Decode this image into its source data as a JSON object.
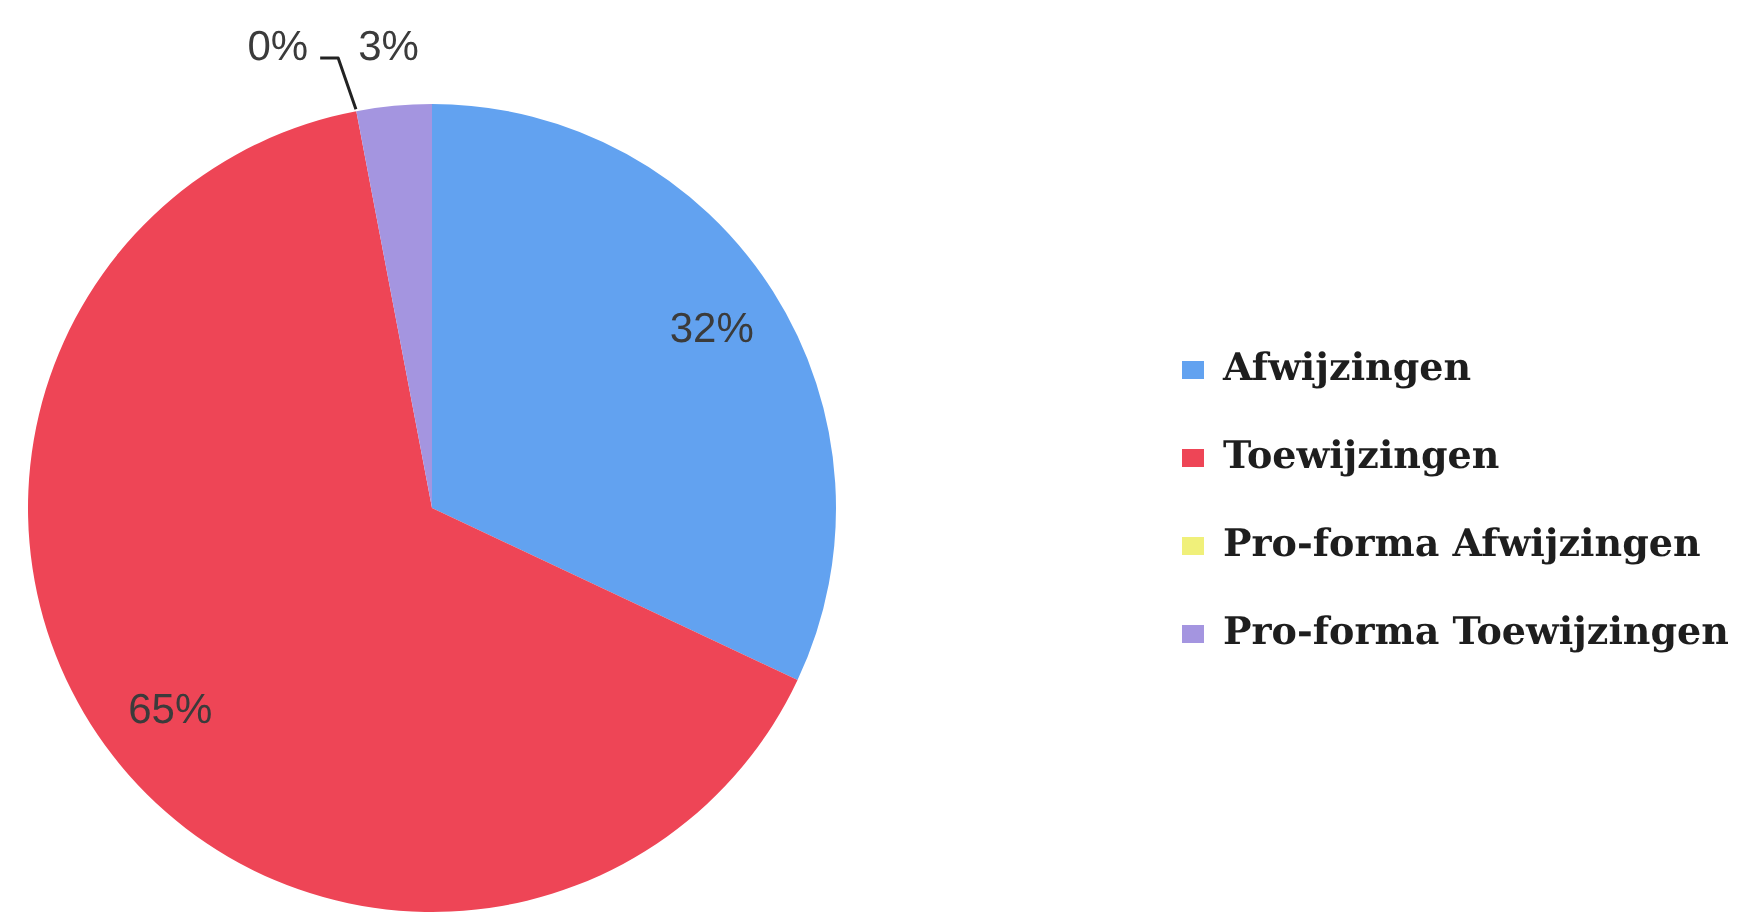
{
  "chart_data": {
    "type": "pie",
    "categories": [
      "Afwijzingen",
      "Toewijzingen",
      "Pro-forma Afwijzingen",
      "Pro-forma Toewijzingen"
    ],
    "values": [
      32,
      65,
      0,
      3
    ],
    "colors": [
      "#62a2f0",
      "#ee4556",
      "#f0f07a",
      "#a495e0"
    ],
    "value_labels": [
      "32%",
      "65%",
      "0%",
      "3%"
    ],
    "legend": "right"
  }
}
